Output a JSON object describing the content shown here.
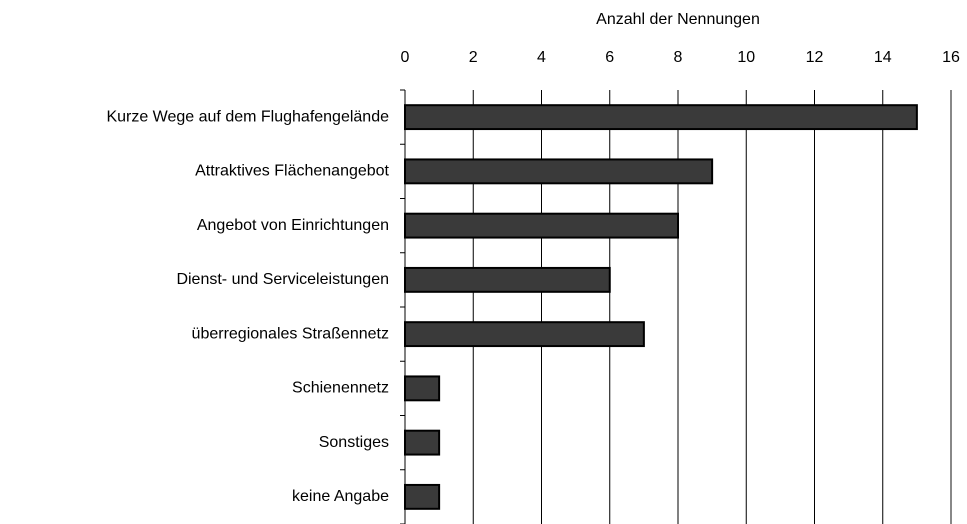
{
  "chart_data": {
    "type": "bar",
    "orientation": "horizontal",
    "xlabel": "Anzahl der Nennungen",
    "categories": [
      "Kurze Wege auf dem Flughafengelände",
      "Attraktives Flächenangebot",
      "Angebot von Einrichtungen",
      "Dienst- und Serviceleistungen",
      "überregionales Straßennetz",
      "Schienennetz",
      "Sonstiges",
      "keine Angabe"
    ],
    "values": [
      15,
      9,
      8,
      6,
      7,
      1,
      1,
      1
    ],
    "color": "#3a3a3a",
    "xlim": [
      0,
      16
    ],
    "xticks": [
      0,
      2,
      4,
      6,
      8,
      10,
      12,
      14,
      16
    ],
    "grid": true
  }
}
